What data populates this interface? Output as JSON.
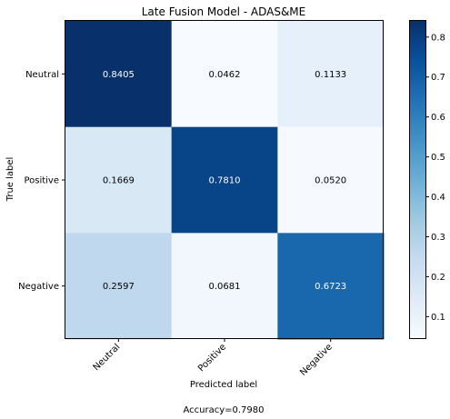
{
  "chart_data": {
    "type": "heatmap",
    "title": "Late Fusion Model  -  ADAS&ME",
    "xlabel": "Predicted label",
    "ylabel": "True label",
    "caption": "Accuracy=0.7980",
    "categories": [
      "Neutral",
      "Positive",
      "Negative"
    ],
    "values": [
      [
        0.8405,
        0.0462,
        0.1133
      ],
      [
        0.1669,
        0.781,
        0.052
      ],
      [
        0.2597,
        0.0681,
        0.6723
      ]
    ],
    "colorbar": {
      "ticks": [
        "0.1",
        "0.2",
        "0.3",
        "0.4",
        "0.5",
        "0.6",
        "0.7",
        "0.8"
      ],
      "range": [
        0.0462,
        0.8405
      ],
      "colormap": "Blues"
    },
    "grid": false
  }
}
